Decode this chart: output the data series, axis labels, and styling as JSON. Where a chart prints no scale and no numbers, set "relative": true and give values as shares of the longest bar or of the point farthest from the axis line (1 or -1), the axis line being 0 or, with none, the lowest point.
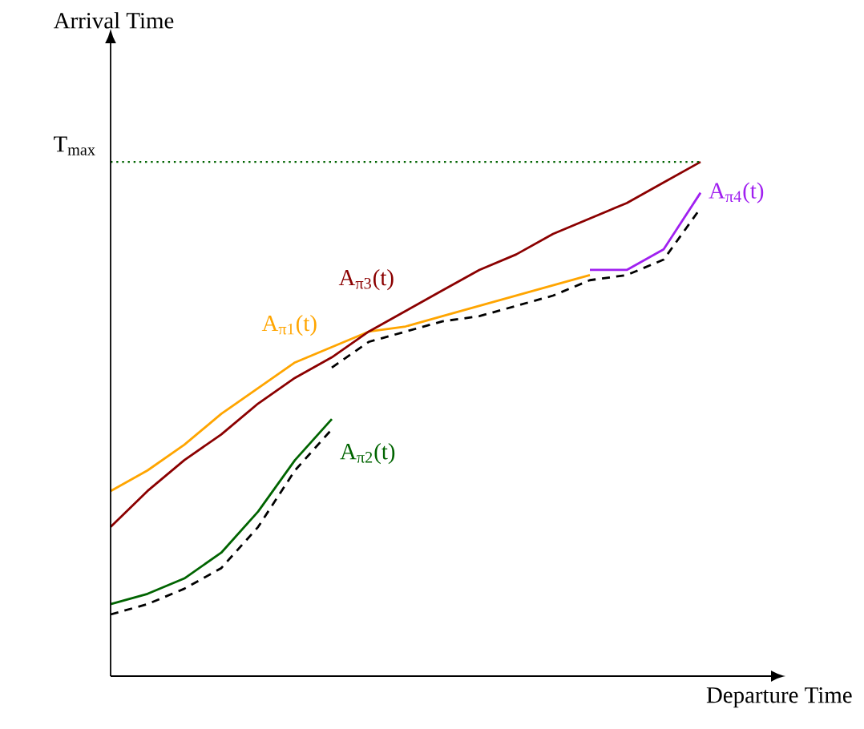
{
  "chart_data": {
    "type": "line",
    "relative": true,
    "xlabel": "Departure Time",
    "annotations": [
      "Arrival Time"
    ],
    "categories": [
      null,
      null,
      null,
      null,
      null,
      null,
      null,
      null,
      null,
      null,
      null,
      null,
      null,
      null,
      null,
      null,
      null
    ],
    "series": [
      {
        "name": "A$_{π1}$(t)",
        "color": "#ffa500",
        "values": [
          0.36,
          0.4,
          0.45,
          0.51,
          0.56,
          0.61,
          0.64,
          0.67,
          0.68,
          0.7,
          0.72,
          0.74,
          0.76,
          0.78,
          null,
          null,
          null
        ]
      },
      {
        "name": "A$_{π2}$(t)",
        "color": "#006400",
        "values": [
          0.14,
          0.16,
          0.19,
          0.24,
          0.32,
          0.42,
          0.5,
          null,
          null,
          null,
          null,
          null,
          null,
          null,
          null,
          null,
          null
        ]
      },
      {
        "name": "A$_{π3}$(t)",
        "color": "#8b0000",
        "values": [
          0.29,
          0.36,
          0.42,
          0.47,
          0.53,
          0.58,
          0.62,
          0.67,
          0.71,
          0.75,
          0.79,
          0.82,
          0.86,
          0.89,
          0.92,
          0.96,
          1.0
        ]
      },
      {
        "name": "A$_{π4}$(t)",
        "color": "#a020f0",
        "values": [
          null,
          null,
          null,
          null,
          null,
          null,
          null,
          null,
          null,
          null,
          null,
          null,
          null,
          0.79,
          0.79,
          0.83,
          0.94
        ]
      },
      {
        "color": "#000000",
        "line_style": "dashed",
        "values": [
          0.12,
          0.14,
          0.17,
          0.21,
          0.29,
          0.4,
          0.48,
          null,
          null,
          null,
          null,
          null,
          null,
          null,
          null,
          null,
          null
        ]
      },
      {
        "color": "#000000",
        "line_style": "dashed",
        "values": [
          null,
          null,
          null,
          null,
          null,
          null,
          0.6,
          0.65,
          0.67,
          0.69,
          0.7,
          0.72,
          0.74,
          0.77,
          0.78,
          0.81,
          0.91
        ]
      }
    ],
    "ref_lines": [
      {
        "axis": "y",
        "value": 1.0,
        "label": "T$_{max}$",
        "color": "#006400",
        "line_style": "dotted"
      }
    ]
  }
}
